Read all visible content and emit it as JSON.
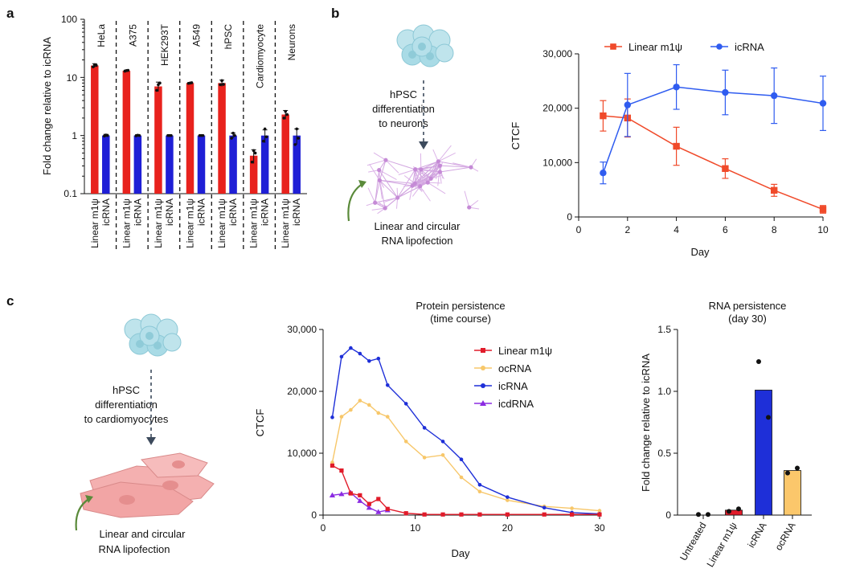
{
  "panel_labels": {
    "a": "a",
    "b": "b",
    "c": "c"
  },
  "colors": {
    "red": "#e8221d",
    "blue": "#1f1fd6",
    "line_red": "#f04a2a",
    "line_blue": "#2f5cf0",
    "c_red": "#e11b2a",
    "c_orange": "#f7c76a",
    "c_blue": "#1e2fd8",
    "c_purple": "#8b2be2",
    "bar_orange": "#fbc76b",
    "cell": "#a9dbe6",
    "neuron": "#c99ad8",
    "cardio": "#f2a5a5",
    "arrow_green": "#5a8a3a"
  },
  "diagrams": {
    "b": {
      "caption1": [
        "hPSC",
        "differentiation",
        "to neurons"
      ],
      "caption2": [
        "Linear and circular",
        "RNA lipofection"
      ],
      "icons": [
        "stem-cell-cluster-icon",
        "neuron-network-icon",
        "curved-arrow-icon"
      ]
    },
    "c": {
      "caption1": [
        "hPSC",
        "differentiation",
        "to cardiomyocytes"
      ],
      "caption2": [
        "Linear and circular",
        "RNA lipofection"
      ],
      "icons": [
        "stem-cell-cluster-icon",
        "cardiomyocyte-icon",
        "curved-arrow-icon"
      ]
    }
  },
  "chart_data": [
    {
      "id": "a",
      "type": "bar",
      "yscale": "log",
      "ylabel": "Fold change relative to icRNA",
      "ylim": [
        0.1,
        100
      ],
      "yticks": [
        "0.1",
        "1",
        "10",
        "100"
      ],
      "groups": [
        {
          "name": "HeLa",
          "bars": [
            {
              "label": "Linear m1ψ",
              "value": 16,
              "err": 1.2,
              "points": [
                15.2,
                16.5,
                16.1
              ]
            },
            {
              "label": "icRNA",
              "value": 1.0,
              "err": 0.05,
              "points": [
                0.98,
                1.02,
                1.0
              ]
            }
          ]
        },
        {
          "name": "A375",
          "bars": [
            {
              "label": "Linear m1ψ",
              "value": 13,
              "err": 0.4,
              "points": [
                12.8,
                13.1,
                13.2
              ]
            },
            {
              "label": "icRNA",
              "value": 1.0,
              "err": 0.04,
              "points": [
                0.99,
                1.01,
                1.0
              ]
            }
          ]
        },
        {
          "name": "HEK293T",
          "bars": [
            {
              "label": "Linear m1ψ",
              "value": 7,
              "err": 1.3,
              "points": [
                6.0,
                7.5,
                8.0
              ]
            },
            {
              "label": "icRNA",
              "value": 1.0,
              "err": 0.03,
              "points": [
                1.0,
                1.0,
                1.0
              ]
            }
          ]
        },
        {
          "name": "A549",
          "bars": [
            {
              "label": "Linear m1ψ",
              "value": 8,
              "err": 0.2,
              "points": [
                7.9,
                8.0,
                8.1
              ]
            },
            {
              "label": "icRNA",
              "value": 1.0,
              "err": 0.03,
              "points": [
                1.0,
                1.0,
                1.0
              ]
            }
          ]
        },
        {
          "name": "hPSC",
          "bars": [
            {
              "label": "Linear m1ψ",
              "value": 8,
              "err": 1.0,
              "points": [
                7.5,
                8.8,
                7.6
              ]
            },
            {
              "label": "icRNA",
              "value": 1.0,
              "err": 0.1,
              "points": [
                0.9,
                1.1,
                1.0
              ]
            }
          ]
        },
        {
          "name": "Cardiomyocyte",
          "bars": [
            {
              "label": "Linear m1ψ",
              "value": 0.45,
              "err": 0.12,
              "points": [
                0.35,
                0.55,
                0.5
              ]
            },
            {
              "label": "icRNA",
              "value": 1.0,
              "err": 0.25,
              "points": [
                0.8,
                1.3,
                0.95
              ]
            }
          ]
        },
        {
          "name": "Neurons",
          "bars": [
            {
              "label": "Linear m1ψ",
              "value": 2.3,
              "err": 0.4,
              "points": [
                2.0,
                2.6,
                2.3
              ]
            },
            {
              "label": "icRNA",
              "value": 1.0,
              "err": 0.3,
              "points": [
                0.7,
                1.3,
                0.9
              ]
            }
          ]
        }
      ]
    },
    {
      "id": "b",
      "type": "line",
      "xlabel": "Day",
      "ylabel": "CTCF",
      "xlim": [
        0,
        10
      ],
      "ylim": [
        0,
        30000
      ],
      "xticks": [
        0,
        2,
        4,
        6,
        8,
        10
      ],
      "yticks": [
        0,
        10000,
        20000,
        30000
      ],
      "ytick_labels": [
        "0",
        "10,000",
        "20,000",
        "30,000"
      ],
      "legend_position": "top",
      "series": [
        {
          "name": "Linear m1ψ",
          "marker": "square",
          "x": [
            1,
            2,
            4,
            6,
            8,
            10
          ],
          "y": [
            18600,
            18200,
            13000,
            8900,
            4900,
            1400
          ],
          "err": [
            2800,
            3500,
            3500,
            1800,
            1100,
            700
          ]
        },
        {
          "name": "icRNA",
          "marker": "circle",
          "x": [
            1,
            2,
            4,
            6,
            8,
            10
          ],
          "y": [
            8100,
            20600,
            23900,
            22900,
            22300,
            20900
          ],
          "err": [
            2000,
            5800,
            4100,
            4100,
            5100,
            5000
          ]
        }
      ]
    },
    {
      "id": "c1",
      "type": "line",
      "title": [
        "Protein persistence",
        "(time course)"
      ],
      "xlabel": "Day",
      "ylabel": "CTCF",
      "xlim": [
        0,
        30
      ],
      "ylim": [
        0,
        30000
      ],
      "xticks": [
        0,
        10,
        20,
        30
      ],
      "yticks": [
        0,
        10000,
        20000,
        30000
      ],
      "ytick_labels": [
        "0",
        "10,000",
        "20,000",
        "30,000"
      ],
      "legend_position": "top-right",
      "series": [
        {
          "name": "Linear m1ψ",
          "marker": "square",
          "x": [
            1,
            2,
            3,
            4,
            5,
            6,
            7,
            9,
            11,
            13,
            15,
            17,
            20,
            24,
            27,
            30
          ],
          "y": [
            8000,
            7200,
            3500,
            3200,
            1800,
            2600,
            1000,
            300,
            100,
            100,
            100,
            100,
            100,
            100,
            100,
            100
          ]
        },
        {
          "name": "ocRNA",
          "marker": "circle",
          "x": [
            1,
            2,
            3,
            4,
            5,
            6,
            7,
            9,
            11,
            13,
            15,
            17,
            20,
            24,
            27,
            30
          ],
          "y": [
            8500,
            15900,
            17000,
            18500,
            17800,
            16500,
            15900,
            11900,
            9300,
            9700,
            6100,
            3800,
            2400,
            1400,
            1100,
            700
          ]
        },
        {
          "name": "icRNA",
          "marker": "circle",
          "x": [
            1,
            2,
            3,
            4,
            5,
            6,
            7,
            9,
            11,
            13,
            15,
            17,
            20,
            24,
            27,
            30
          ],
          "y": [
            15800,
            25600,
            27000,
            26100,
            24900,
            25300,
            21000,
            18000,
            14100,
            11900,
            9000,
            4900,
            2900,
            1200,
            400,
            200
          ]
        },
        {
          "name": "icdRNA",
          "marker": "triangle",
          "x": [
            1,
            2,
            3,
            4,
            5,
            6,
            7
          ],
          "y": [
            3200,
            3400,
            3600,
            2300,
            1200,
            500,
            800
          ]
        }
      ]
    },
    {
      "id": "c2",
      "type": "bar",
      "title": [
        "RNA persistence",
        "(day 30)"
      ],
      "ylabel": "Fold change relative to icRNA",
      "ylim": [
        0,
        1.5
      ],
      "yticks": [
        0,
        0.5,
        1.0,
        1.5
      ],
      "ytick_labels": [
        "0",
        "0.5",
        "1.0",
        "1.5"
      ],
      "categories": [
        "Untreated",
        "Linear m1ψ",
        "icRNA",
        "ocRNA"
      ],
      "values": [
        0,
        0.04,
        1.01,
        0.36
      ],
      "points": [
        [
          0.005,
          0.005
        ],
        [
          0.03,
          0.05
        ],
        [
          1.24,
          0.79
        ],
        [
          0.34,
          0.38
        ]
      ]
    }
  ]
}
